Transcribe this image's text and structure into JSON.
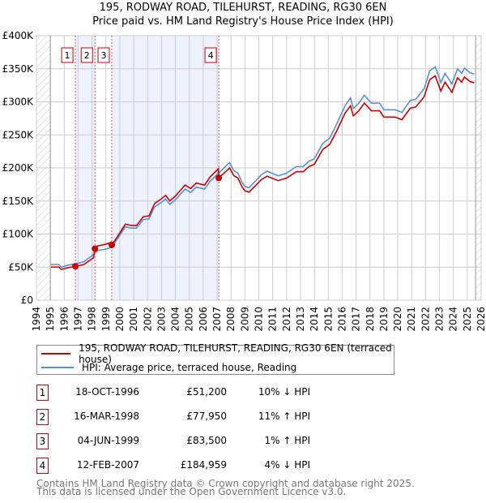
{
  "chart_data": {
    "type": "line",
    "title": "195, RODWAY ROAD, TILEHURST, READING, RG30 6EN",
    "subtitle": "Price paid vs. HM Land Registry's House Price Index (HPI)",
    "xlim": [
      1994,
      2026
    ],
    "ylim": [
      0,
      400000
    ],
    "y_ticks": [
      0,
      50000,
      100000,
      150000,
      200000,
      250000,
      300000,
      350000,
      400000
    ],
    "y_tick_labels": [
      "£0",
      "£50K",
      "£100K",
      "£150K",
      "£200K",
      "£250K",
      "£300K",
      "£350K",
      "£400K"
    ],
    "x_tick_labels": [
      "1994",
      "1995",
      "1996",
      "1997",
      "1998",
      "1999",
      "2000",
      "2001",
      "2002",
      "2003",
      "2004",
      "2005",
      "2006",
      "2007",
      "2008",
      "2009",
      "2010",
      "2011",
      "2012",
      "2013",
      "2014",
      "2015",
      "2016",
      "2017",
      "2018",
      "2019",
      "2020",
      "2021",
      "2022",
      "2023",
      "2024",
      "2025",
      "2026"
    ],
    "grid": true,
    "data_range": [
      1995,
      2025.6
    ],
    "colors": {
      "price_paid": "#cc0000",
      "hpi": "#5b8fd4",
      "shade": "#eef2fc"
    },
    "hpi_series": {
      "name": "HPI: Average price, terraced house, Reading",
      "x": [
        1995.05,
        1995.6,
        1995.8,
        1996.3,
        1997.0,
        1997.4,
        1998.1,
        1998.4,
        1998.95,
        1999.4,
        1999.9,
        2000.4,
        2000.8,
        2001.2,
        2001.7,
        2002.1,
        2002.5,
        2003.0,
        2003.3,
        2003.6,
        2004.0,
        2004.7,
        2005.1,
        2005.5,
        2006.1,
        2006.5,
        2007.1,
        2007.9,
        2008.2,
        2008.5,
        2008.8,
        2009.0,
        2009.3,
        2010.2,
        2010.6,
        2011.4,
        2012.0,
        2012.7,
        2013.2,
        2013.6,
        2014.0,
        2014.6,
        2015.1,
        2015.6,
        2016.2,
        2016.6,
        2016.8,
        2017.2,
        2017.6,
        2018.1,
        2018.7,
        2019.0,
        2019.8,
        2020.3,
        2020.9,
        2021.3,
        2021.9,
        2022.3,
        2022.7,
        2023.1,
        2023.4,
        2023.9,
        2024.3,
        2024.6,
        2024.8,
        2025.2,
        2025.5
      ],
      "y": [
        54000,
        54000,
        50000,
        53000,
        56000,
        58000,
        69000,
        75000,
        77000,
        80000,
        95000,
        111000,
        109000,
        109000,
        122000,
        123000,
        141000,
        148000,
        153000,
        145000,
        152000,
        168000,
        163000,
        171000,
        168000,
        180000,
        192000,
        208000,
        196000,
        192000,
        178000,
        172000,
        170000,
        190000,
        195000,
        188000,
        192000,
        202000,
        202000,
        210000,
        214000,
        237000,
        245000,
        266000,
        294000,
        306000,
        290000,
        298000,
        310000,
        298000,
        298000,
        288000,
        288000,
        284000,
        302000,
        304000,
        320000,
        347000,
        353000,
        329000,
        343000,
        327000,
        350000,
        343000,
        351000,
        344000,
        342000
      ]
    },
    "price_paid_series": {
      "name": "195, RODWAY ROAD, TILEHURST, READING, RG30 6EN (terraced house)"
    },
    "sales": [
      {
        "n": "1",
        "x": 1996.8,
        "date": "18-OCT-1996",
        "price": 51200,
        "price_label": "£51,200",
        "hpi_label": "10% ↓ HPI",
        "ratio": 0.9
      },
      {
        "n": "2",
        "x": 1998.21,
        "date": "16-MAR-1998",
        "price": 77950,
        "price_label": "£77,950",
        "hpi_label": "11% ↑ HPI",
        "ratio": 1.11
      },
      {
        "n": "3",
        "x": 1999.42,
        "date": "04-JUN-1999",
        "price": 83500,
        "price_label": "£83,500",
        "hpi_label": "1% ↑ HPI",
        "ratio": 1.01
      },
      {
        "n": "4",
        "x": 2007.12,
        "date": "12-FEB-2007",
        "price": 184959,
        "price_label": "£184,959",
        "hpi_label": "4% ↓ HPI",
        "ratio": 0.96
      }
    ]
  },
  "footer": {
    "line1": "Contains HM Land Registry data © Crown copyright and database right 2025.",
    "line2": "This data is licensed under the Open Government Licence v3.0."
  }
}
